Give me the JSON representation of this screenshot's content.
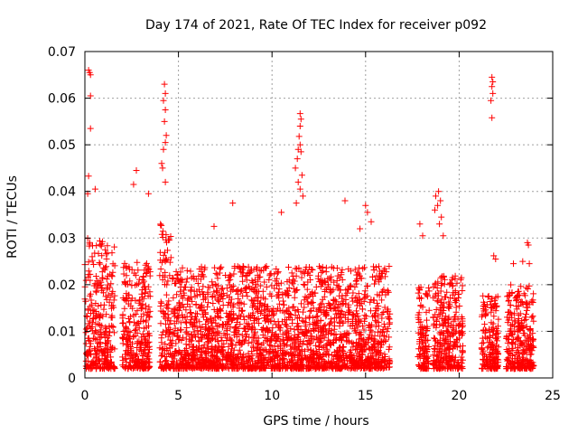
{
  "chart_data": {
    "type": "scatter",
    "title": "Day 174 of 2021, Rate Of TEC Index for receiver p092",
    "xlabel": "GPS time / hours",
    "ylabel": "ROTI / TECUs",
    "xlim": [
      0,
      25
    ],
    "ylim": [
      0,
      0.07
    ],
    "xticks": [
      0,
      5,
      10,
      15,
      20,
      25
    ],
    "xtick_labels": [
      "0",
      "5",
      "10",
      "15",
      "20",
      "25"
    ],
    "yticks": [
      0,
      0.01,
      0.02,
      0.03,
      0.04,
      0.05,
      0.06,
      0.07
    ],
    "ytick_labels": [
      "0",
      "0.01",
      "0.02",
      "0.03",
      "0.04",
      "0.05",
      "0.06",
      "0.07"
    ],
    "grid": true,
    "marker": "+",
    "color": "#ff0000",
    "activity_segments": [
      {
        "x": [
          0.0,
          1.6
        ],
        "typical_max": 0.03
      },
      {
        "x": [
          2.0,
          3.5
        ],
        "typical_max": 0.025
      },
      {
        "x": [
          4.0,
          4.6
        ],
        "typical_max": 0.035
      },
      {
        "x": [
          4.6,
          16.3
        ],
        "typical_max": 0.024
      },
      {
        "x": [
          17.8,
          18.4
        ],
        "typical_max": 0.02
      },
      {
        "x": [
          18.6,
          20.2
        ],
        "typical_max": 0.022
      },
      {
        "x": [
          21.2,
          22.1
        ],
        "typical_max": 0.018
      },
      {
        "x": [
          22.5,
          24.0
        ],
        "typical_max": 0.02
      }
    ],
    "highlighted_points": [
      {
        "x": 0.2,
        "y": 0.066
      },
      {
        "x": 0.25,
        "y": 0.0655
      },
      {
        "x": 0.3,
        "y": 0.065
      },
      {
        "x": 0.3,
        "y": 0.0605
      },
      {
        "x": 0.3,
        "y": 0.0535
      },
      {
        "x": 0.2,
        "y": 0.0433
      },
      {
        "x": 0.15,
        "y": 0.0395
      },
      {
        "x": 0.55,
        "y": 0.0405
      },
      {
        "x": 2.75,
        "y": 0.0445
      },
      {
        "x": 2.6,
        "y": 0.0415
      },
      {
        "x": 3.4,
        "y": 0.0395
      },
      {
        "x": 4.25,
        "y": 0.063
      },
      {
        "x": 4.3,
        "y": 0.061
      },
      {
        "x": 4.2,
        "y": 0.0595
      },
      {
        "x": 4.3,
        "y": 0.0575
      },
      {
        "x": 4.25,
        "y": 0.055
      },
      {
        "x": 4.35,
        "y": 0.052
      },
      {
        "x": 4.3,
        "y": 0.0505
      },
      {
        "x": 4.2,
        "y": 0.049
      },
      {
        "x": 4.1,
        "y": 0.046
      },
      {
        "x": 4.15,
        "y": 0.045
      },
      {
        "x": 4.3,
        "y": 0.042
      },
      {
        "x": 11.5,
        "y": 0.0567
      },
      {
        "x": 11.55,
        "y": 0.0555
      },
      {
        "x": 11.5,
        "y": 0.054
      },
      {
        "x": 11.45,
        "y": 0.0518
      },
      {
        "x": 11.5,
        "y": 0.05
      },
      {
        "x": 11.4,
        "y": 0.049
      },
      {
        "x": 11.55,
        "y": 0.0485
      },
      {
        "x": 11.35,
        "y": 0.047
      },
      {
        "x": 11.25,
        "y": 0.045
      },
      {
        "x": 11.6,
        "y": 0.0435
      },
      {
        "x": 11.4,
        "y": 0.042
      },
      {
        "x": 11.5,
        "y": 0.0405
      },
      {
        "x": 11.65,
        "y": 0.039
      },
      {
        "x": 11.3,
        "y": 0.0375
      },
      {
        "x": 7.9,
        "y": 0.0375
      },
      {
        "x": 6.9,
        "y": 0.0325
      },
      {
        "x": 10.5,
        "y": 0.0355
      },
      {
        "x": 13.9,
        "y": 0.038
      },
      {
        "x": 15.0,
        "y": 0.037
      },
      {
        "x": 15.1,
        "y": 0.0355
      },
      {
        "x": 15.3,
        "y": 0.0335
      },
      {
        "x": 14.7,
        "y": 0.032
      },
      {
        "x": 18.9,
        "y": 0.04
      },
      {
        "x": 18.75,
        "y": 0.039
      },
      {
        "x": 19.0,
        "y": 0.038
      },
      {
        "x": 18.85,
        "y": 0.037
      },
      {
        "x": 18.7,
        "y": 0.036
      },
      {
        "x": 19.05,
        "y": 0.0345
      },
      {
        "x": 18.95,
        "y": 0.033
      },
      {
        "x": 19.15,
        "y": 0.0305
      },
      {
        "x": 17.9,
        "y": 0.033
      },
      {
        "x": 18.05,
        "y": 0.0305
      },
      {
        "x": 21.75,
        "y": 0.0645
      },
      {
        "x": 21.8,
        "y": 0.0635
      },
      {
        "x": 21.75,
        "y": 0.0625
      },
      {
        "x": 21.8,
        "y": 0.061
      },
      {
        "x": 21.7,
        "y": 0.0595
      },
      {
        "x": 21.75,
        "y": 0.0558
      },
      {
        "x": 21.85,
        "y": 0.0262
      },
      {
        "x": 21.95,
        "y": 0.0255
      },
      {
        "x": 23.65,
        "y": 0.029
      },
      {
        "x": 23.7,
        "y": 0.0285
      },
      {
        "x": 23.4,
        "y": 0.025
      },
      {
        "x": 23.75,
        "y": 0.0245
      },
      {
        "x": 22.9,
        "y": 0.0245
      }
    ]
  }
}
